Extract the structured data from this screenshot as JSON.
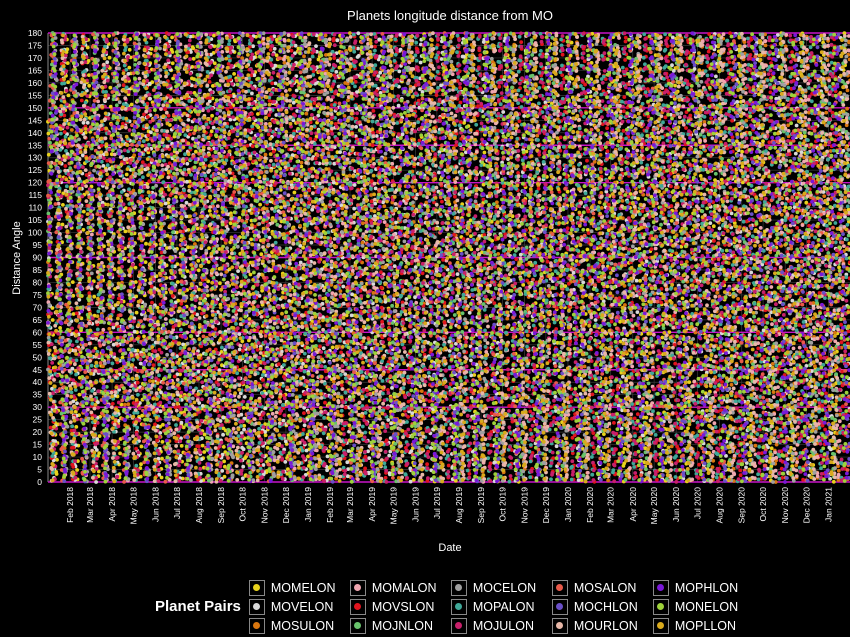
{
  "chart_data": {
    "type": "scatter",
    "title": "Planets longitude distance from MO",
    "xlabel": "Date",
    "ylabel": "Distance Angle",
    "xlim": [
      "2018-01-01",
      "2021-01-31"
    ],
    "ylim": [
      0,
      180
    ],
    "x_tick_labels": [
      "Feb 2018",
      "Mar 2018",
      "Apr 2018",
      "May 2018",
      "Jun 2018",
      "Jul 2018",
      "Aug 2018",
      "Sep 2018",
      "Oct 2018",
      "Nov 2018",
      "Dec 2018",
      "Jan 2019",
      "Feb 2019",
      "Mar 2019",
      "Apr 2019",
      "May 2019",
      "Jun 2019",
      "Jul 2019",
      "Aug 2019",
      "Sep 2019",
      "Oct 2019",
      "Nov 2019",
      "Dec 2019",
      "Jan 2020",
      "Feb 2020",
      "Mar 2020",
      "Apr 2020",
      "May 2020",
      "Jun 2020",
      "Jul 2020",
      "Aug 2020",
      "Sep 2020",
      "Oct 2020",
      "Nov 2020",
      "Dec 2020",
      "Jan 2021"
    ],
    "y_tick_labels": [
      "0",
      "5",
      "10",
      "15",
      "20",
      "25",
      "30",
      "35",
      "40",
      "45",
      "50",
      "55",
      "60",
      "65",
      "70",
      "75",
      "80",
      "85",
      "90",
      "95",
      "100",
      "105",
      "110",
      "115",
      "120",
      "125",
      "130",
      "135",
      "140",
      "145",
      "150",
      "155",
      "160",
      "165",
      "170",
      "175",
      "180"
    ],
    "highlight_lines": [
      0,
      30,
      45,
      60,
      90,
      120,
      135,
      150,
      180
    ],
    "grid": true,
    "legend_title": "Planet Pairs",
    "legend_position": "bottom",
    "series": [
      {
        "name": "MOMELON",
        "color": "#e8d21c",
        "period_days": 29.5
      },
      {
        "name": "MOVELON",
        "color": "#d9d9d9",
        "period_days": 29.5
      },
      {
        "name": "MOSULON",
        "color": "#d9760f",
        "period_days": 29.5
      },
      {
        "name": "MOMALON",
        "color": "#f0a6b0",
        "period_days": 29.5
      },
      {
        "name": "MOVSLON",
        "color": "#e0141e",
        "period_days": 29.5
      },
      {
        "name": "MOJNLON",
        "color": "#68c36b",
        "period_days": 29.5
      },
      {
        "name": "MOCELON",
        "color": "#a0a0a0",
        "period_days": 29.5
      },
      {
        "name": "MOPALON",
        "color": "#3fa898",
        "period_days": 29.5
      },
      {
        "name": "MOJULON",
        "color": "#c81f6a",
        "period_days": 29.5
      },
      {
        "name": "MOSALON",
        "color": "#e85a4a",
        "period_days": 29.5
      },
      {
        "name": "MOCHLON",
        "color": "#6a4fc8",
        "period_days": 29.5
      },
      {
        "name": "MOURLON",
        "color": "#e8b8a8",
        "period_days": 29.5
      },
      {
        "name": "MOPHLON",
        "color": "#7a18d8",
        "period_days": 29.5
      },
      {
        "name": "MONELON",
        "color": "#9ed23a",
        "period_days": 29.5
      },
      {
        "name": "MOPLLON",
        "color": "#d9aa1c",
        "period_days": 29.5
      }
    ]
  }
}
